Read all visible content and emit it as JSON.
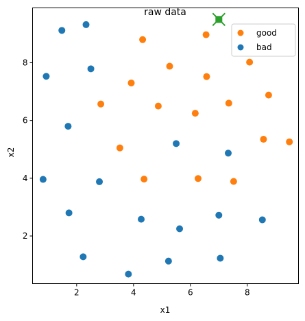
{
  "chart_data": {
    "type": "scatter",
    "title": "raw data",
    "xlabel": "x1",
    "ylabel": "x2",
    "xlim": [
      0.45,
      9.8
    ],
    "ylim": [
      0.35,
      9.9
    ],
    "xticks": [
      2,
      4,
      6,
      8
    ],
    "yticks": [
      2,
      4,
      6,
      8
    ],
    "grid": false,
    "legend_position": "top-right",
    "series": [
      {
        "name": "good",
        "color": "#ff7f0e",
        "points": [
          {
            "x": 2.85,
            "y": 6.57
          },
          {
            "x": 3.52,
            "y": 5.05
          },
          {
            "x": 3.92,
            "y": 7.3
          },
          {
            "x": 4.32,
            "y": 8.8
          },
          {
            "x": 4.37,
            "y": 3.97
          },
          {
            "x": 4.87,
            "y": 6.5
          },
          {
            "x": 5.27,
            "y": 7.88
          },
          {
            "x": 6.17,
            "y": 6.25
          },
          {
            "x": 6.27,
            "y": 3.99
          },
          {
            "x": 6.55,
            "y": 8.97
          },
          {
            "x": 6.57,
            "y": 7.52
          },
          {
            "x": 7.35,
            "y": 6.6
          },
          {
            "x": 7.52,
            "y": 3.89
          },
          {
            "x": 8.08,
            "y": 8.02
          },
          {
            "x": 8.57,
            "y": 5.35
          },
          {
            "x": 8.75,
            "y": 6.88
          },
          {
            "x": 9.48,
            "y": 5.26
          }
        ]
      },
      {
        "name": "bad",
        "color": "#1f77b4",
        "points": [
          {
            "x": 0.82,
            "y": 3.96
          },
          {
            "x": 0.93,
            "y": 7.53
          },
          {
            "x": 1.48,
            "y": 9.12
          },
          {
            "x": 1.7,
            "y": 5.8
          },
          {
            "x": 1.73,
            "y": 2.8
          },
          {
            "x": 2.23,
            "y": 1.28
          },
          {
            "x": 2.33,
            "y": 9.32
          },
          {
            "x": 2.5,
            "y": 7.79
          },
          {
            "x": 2.8,
            "y": 3.88
          },
          {
            "x": 3.82,
            "y": 0.68
          },
          {
            "x": 4.27,
            "y": 2.58
          },
          {
            "x": 5.23,
            "y": 1.13
          },
          {
            "x": 5.5,
            "y": 5.2
          },
          {
            "x": 5.62,
            "y": 2.25
          },
          {
            "x": 7.0,
            "y": 2.72
          },
          {
            "x": 7.05,
            "y": 1.23
          },
          {
            "x": 7.33,
            "y": 4.87
          },
          {
            "x": 8.53,
            "y": 2.56
          }
        ]
      }
    ],
    "highlight": {
      "x": 7.0,
      "y": 9.5,
      "marker": "x-with-square",
      "color": "#2ca02c"
    }
  }
}
